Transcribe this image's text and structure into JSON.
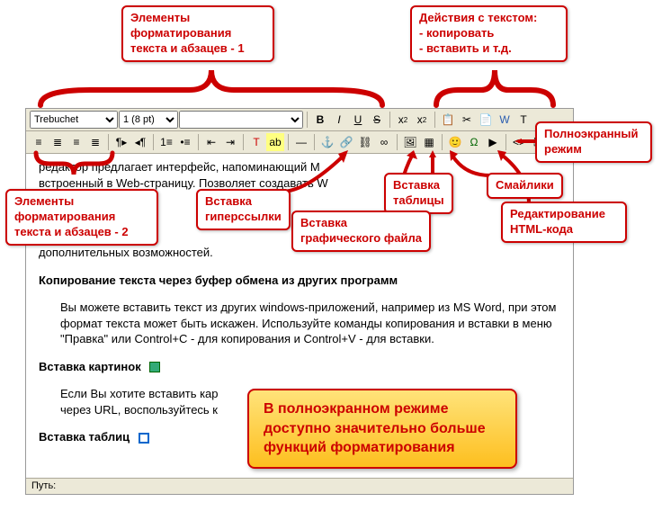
{
  "callouts": {
    "format1": "Элементы\nформатирования\nтекста и абзацев - 1",
    "actions": "Действия с текстом:\n- копировать\n- вставить и т.д.",
    "fullscreen": "Полноэкранный\nрежим",
    "smilies": "Смайлики",
    "table": "Вставка\nтаблицы",
    "htmledit": "Редактирование\nHTML-кода",
    "image": "Вставка\nграфического файла",
    "link": "Вставка\nгиперссылки",
    "format2": "Элементы\nформатирования\nтекста и абзацев - 2"
  },
  "toolbar": {
    "font_options": [
      "Trebuchet"
    ],
    "font_value": "Trebuchet",
    "size_options": [
      "1 (8 pt)"
    ],
    "size_value": "1 (8 pt)",
    "style_value": ""
  },
  "content": {
    "p1": "редактор предлагает интерфейс, напоминающий M",
    "p1b": "встроенный в Web-страницу. Позволяет создавать W",
    "p_extra": "дополнительных возможностей.",
    "h1": "Копирование текста через буфер обмена из других программ",
    "p2": "Вы можете вставить текст из других windows-приложений, например из MS Word, при этом формат текста может быть искажен. Используйте команды копирования и вставки в меню \"Правка\" или Control+C - для копирования и Control+V - для вставки.",
    "h2": "Вставка картинок",
    "p3": "Если Вы хотите вставить кар",
    "p3b": "через URL, воспользуйтесь к",
    "h3": "Вставка таблиц"
  },
  "status": {
    "path_label": "Путь:"
  },
  "yellowbox": "В полноэкранном режиме\nдоступно значительно больше\nфункций форматирования",
  "colors": {
    "accent": "#c00",
    "toolbar_bg": "#ece9d8",
    "yellow_top": "#ffe37a",
    "yellow_bottom": "#fdbf1f"
  }
}
